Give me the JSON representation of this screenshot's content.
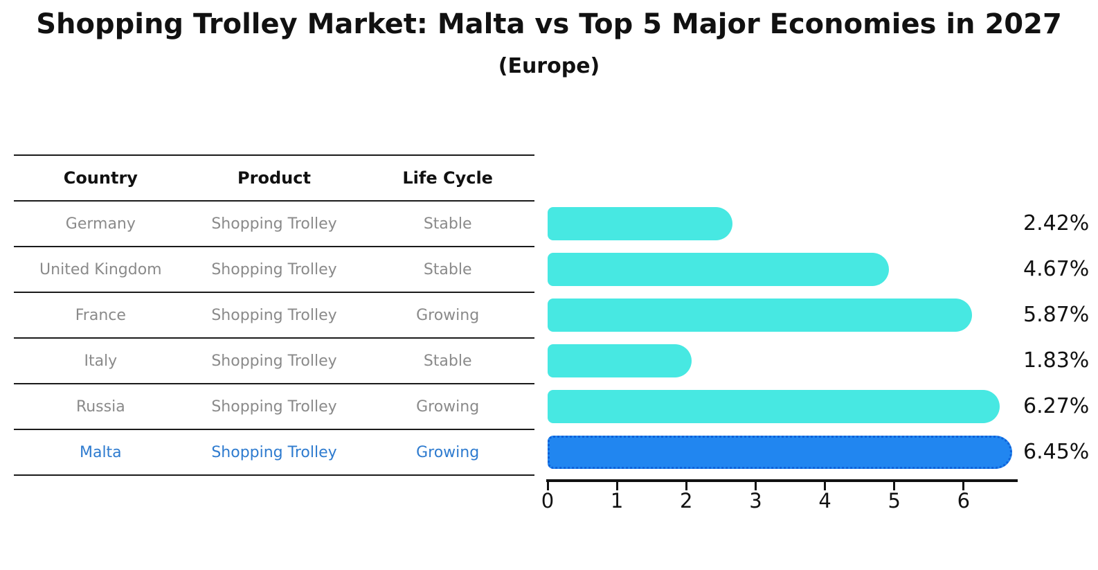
{
  "title": "Shopping Trolley Market: Malta vs Top 5 Major Economies in 2027",
  "subtitle": "(Europe)",
  "table": {
    "headers": [
      "Country",
      "Product",
      "Life Cycle"
    ],
    "rows": [
      {
        "country": "Germany",
        "product": "Shopping Trolley",
        "life_cycle": "Stable",
        "highlight": false
      },
      {
        "country": "United Kingdom",
        "product": "Shopping Trolley",
        "life_cycle": "Stable",
        "highlight": false
      },
      {
        "country": "France",
        "product": "Shopping Trolley",
        "life_cycle": "Growing",
        "highlight": false
      },
      {
        "country": "Italy",
        "product": "Shopping Trolley",
        "life_cycle": "Stable",
        "highlight": false
      },
      {
        "country": "Russia",
        "product": "Shopping Trolley",
        "life_cycle": "Growing",
        "highlight": false
      },
      {
        "country": "Malta",
        "product": "Shopping Trolley",
        "life_cycle": "Growing",
        "highlight": true
      }
    ]
  },
  "chart_data": {
    "type": "bar",
    "orientation": "horizontal",
    "title": "Shopping Trolley Market: Malta vs Top 5 Major Economies in 2027 (Europe)",
    "categories": [
      "Germany",
      "United Kingdom",
      "France",
      "Italy",
      "Russia",
      "Malta"
    ],
    "values": [
      2.42,
      4.67,
      5.87,
      1.83,
      6.27,
      6.45
    ],
    "value_labels": [
      "2.42%",
      "4.67%",
      "5.87%",
      "1.83%",
      "6.27%",
      "6.45%"
    ],
    "xlabel": "",
    "ylabel": "",
    "xlim": [
      0,
      6.78
    ],
    "x_ticks": [
      0,
      1,
      2,
      3,
      4,
      5,
      6
    ],
    "grid": false,
    "legend": false,
    "highlight_index": 5
  },
  "colors": {
    "bar": "#47e8e2",
    "highlight_bar": "#2186f0",
    "highlight_border": "#0e61d9",
    "row_text": "#8a8a8a",
    "highlight_text": "#2e7bcf",
    "value_text": "#111111"
  }
}
